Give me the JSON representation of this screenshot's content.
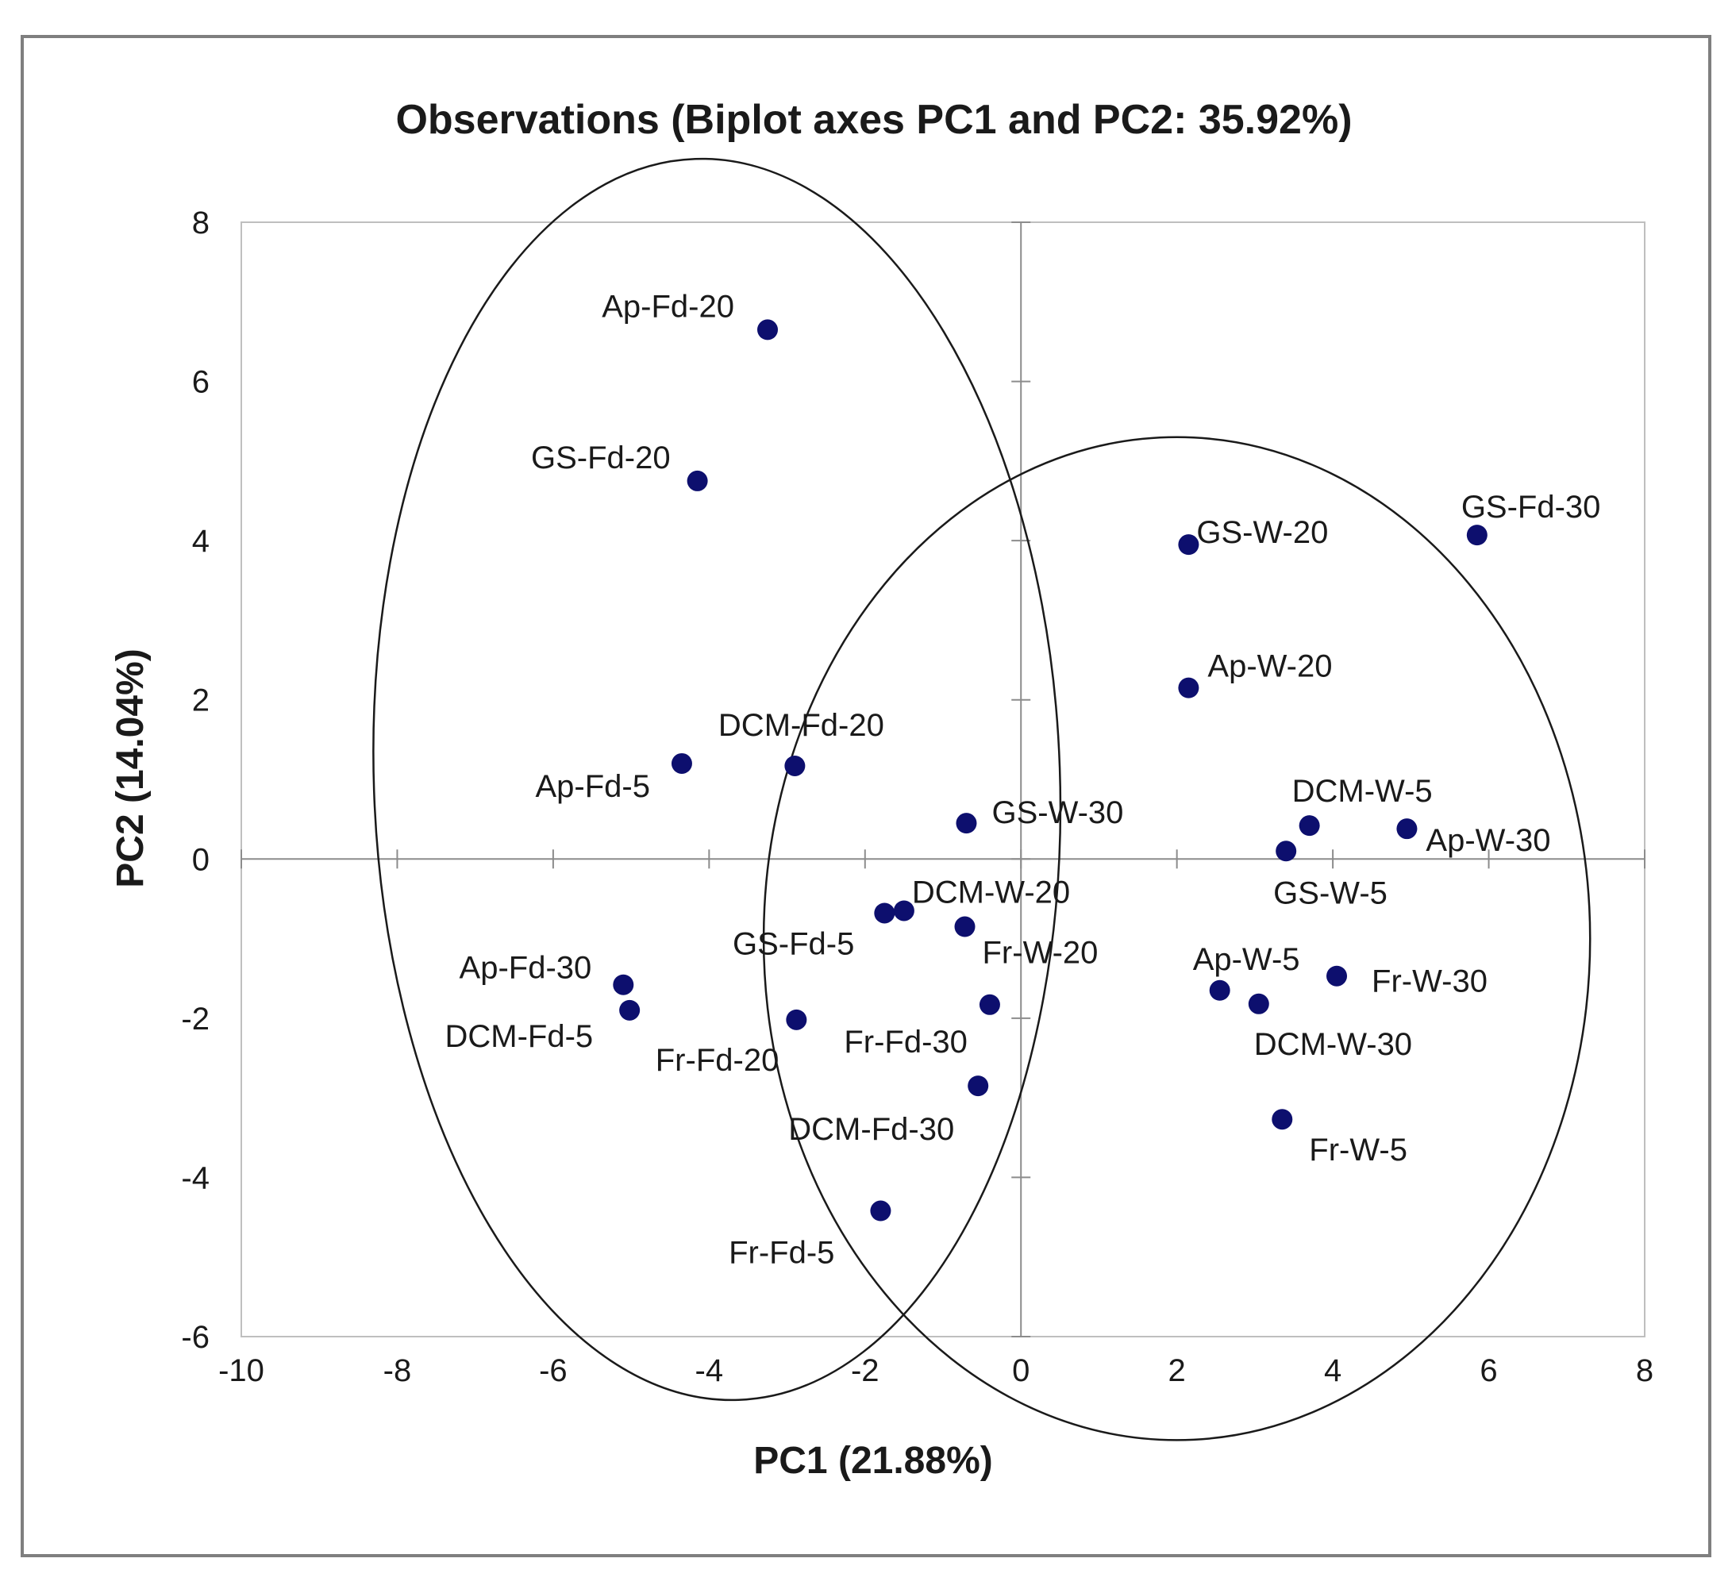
{
  "chart_data": {
    "type": "scatter",
    "title": "Observations (Biplot axes PC1 and PC2: 35.92%)",
    "xlabel": "PC1 (21.88%)",
    "ylabel": "PC2 (14.04%)",
    "xlim": [
      -10,
      8
    ],
    "ylim": [
      -6,
      8
    ],
    "xticks": [
      -10,
      -8,
      -6,
      -4,
      -2,
      0,
      2,
      4,
      6,
      8
    ],
    "yticks": [
      -6,
      -4,
      -2,
      0,
      2,
      4,
      6,
      8
    ],
    "x_tick_labels": [
      "-10",
      "-8",
      "-6",
      "-4",
      "-2",
      "0",
      "2",
      "4",
      "6",
      "8"
    ],
    "y_tick_labels": [
      "-6",
      "-4",
      "-2",
      "0",
      "2",
      "4",
      "6",
      "8"
    ],
    "point_color": "#0d0f6e",
    "grid": false,
    "points": [
      {
        "label": "Ap-Fd-20",
        "x": -3.25,
        "y": 6.65
      },
      {
        "label": "GS-Fd-20",
        "x": -4.15,
        "y": 4.75
      },
      {
        "label": "DCM-Fd-20",
        "x": -2.9,
        "y": 1.17
      },
      {
        "label": "Ap-Fd-5",
        "x": -4.35,
        "y": 1.2
      },
      {
        "label": "Ap-Fd-30",
        "x": -5.1,
        "y": -1.58
      },
      {
        "label": "DCM-Fd-5",
        "x": -5.02,
        "y": -1.9
      },
      {
        "label": "Fr-Fd-20",
        "x": -2.88,
        "y": -2.02
      },
      {
        "label": "GS-Fd-5",
        "x": -1.75,
        "y": -0.68
      },
      {
        "label": "DCM-W-20",
        "x": -1.5,
        "y": -0.65
      },
      {
        "label": "GS-W-30",
        "x": -0.7,
        "y": 0.45
      },
      {
        "label": "Fr-W-20",
        "x": -0.72,
        "y": -0.85
      },
      {
        "label": "Fr-Fd-30",
        "x": -0.4,
        "y": -1.83
      },
      {
        "label": "DCM-Fd-30",
        "x": -0.55,
        "y": -2.85
      },
      {
        "label": "Fr-Fd-5",
        "x": -1.8,
        "y": -4.42
      },
      {
        "label": "GS-W-20",
        "x": 2.15,
        "y": 3.95
      },
      {
        "label": "GS-Fd-30",
        "x": 5.85,
        "y": 4.07
      },
      {
        "label": "Ap-W-20",
        "x": 2.15,
        "y": 2.15
      },
      {
        "label": "DCM-W-5",
        "x": 3.7,
        "y": 0.42
      },
      {
        "label": "Ap-W-30",
        "x": 4.95,
        "y": 0.38
      },
      {
        "label": "GS-W-5",
        "x": 3.4,
        "y": 0.1
      },
      {
        "label": "Ap-W-5",
        "x": 2.55,
        "y": -1.65
      },
      {
        "label": "Fr-W-30",
        "x": 4.05,
        "y": -1.47
      },
      {
        "label": "DCM-W-30",
        "x": 3.05,
        "y": -1.82
      },
      {
        "label": "Fr-W-5",
        "x": 3.35,
        "y": -3.27
      }
    ],
    "ellipses": [
      {
        "name": "left-group",
        "cx": -3.9,
        "cy": 1.0,
        "rx": 4.4,
        "ry": 7.8,
        "rotation": -2
      },
      {
        "name": "right-group",
        "cx": 2.0,
        "cy": -1.0,
        "rx": 5.3,
        "ry": 6.3,
        "rotation": 0
      }
    ]
  }
}
